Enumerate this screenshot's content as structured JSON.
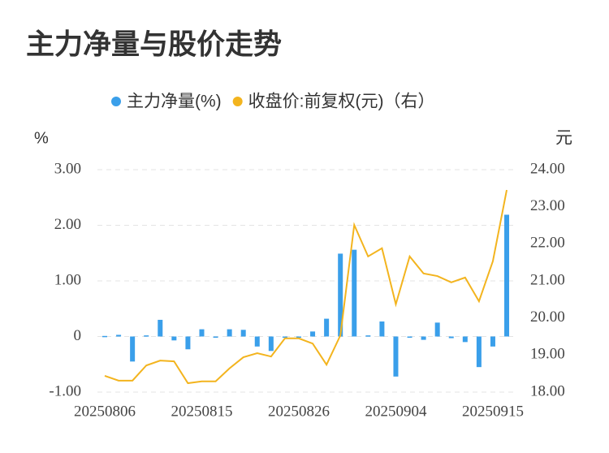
{
  "chart_data": {
    "type": "bar_line",
    "title": "主力净量与股价走势",
    "y_unit": "%",
    "y2_unit": "元",
    "categories": [
      "20250806",
      null,
      null,
      null,
      null,
      null,
      null,
      "20250815",
      null,
      null,
      null,
      null,
      null,
      null,
      "20250826",
      null,
      null,
      null,
      null,
      null,
      null,
      "20250904",
      null,
      null,
      null,
      null,
      null,
      null,
      "20250915",
      null
    ],
    "series": [
      {
        "name": "主力净量(%)",
        "type": "bar",
        "color": "#3a9fea",
        "values": [
          0.01,
          0.03,
          -0.45,
          0.02,
          0.3,
          -0.07,
          -0.23,
          0.13,
          -0.02,
          0.13,
          0.12,
          -0.18,
          -0.26,
          -0.02,
          -0.02,
          0.09,
          0.32,
          1.49,
          1.56,
          0.02,
          0.27,
          -0.72,
          -0.01,
          -0.06,
          0.25,
          -0.03,
          -0.1,
          -0.55,
          -0.18,
          2.19
        ]
      },
      {
        "name": "收盘价:前复权(元)（右）",
        "type": "line",
        "axis": "y2",
        "color": "#f3b41e",
        "values": [
          18.44,
          18.31,
          18.31,
          18.72,
          18.85,
          18.83,
          18.24,
          18.29,
          18.29,
          18.64,
          18.94,
          19.05,
          18.96,
          19.45,
          19.45,
          19.31,
          18.74,
          19.53,
          22.51,
          21.66,
          21.88,
          20.37,
          21.66,
          21.2,
          21.13,
          20.96,
          21.09,
          20.45,
          21.53,
          23.45
        ]
      }
    ],
    "ylim": [
      -1,
      3
    ],
    "yticks": [
      {
        "value": -1,
        "label": "-1.00"
      },
      0,
      {
        "value": 1,
        "label": "1.00"
      },
      {
        "value": 2,
        "label": "2.00"
      },
      {
        "value": 3,
        "label": "3.00"
      }
    ],
    "y2lim": [
      18,
      24
    ],
    "y2ticks": [
      {
        "value": 18,
        "label": "18.00"
      },
      {
        "value": 19,
        "label": "19.00"
      },
      {
        "value": 20,
        "label": "20.00"
      },
      {
        "value": 21,
        "label": "21.00"
      },
      {
        "value": 22,
        "label": "22.00"
      },
      {
        "value": 23,
        "label": "23.00"
      },
      {
        "value": 24,
        "label": "24.00"
      }
    ],
    "grid": true
  }
}
